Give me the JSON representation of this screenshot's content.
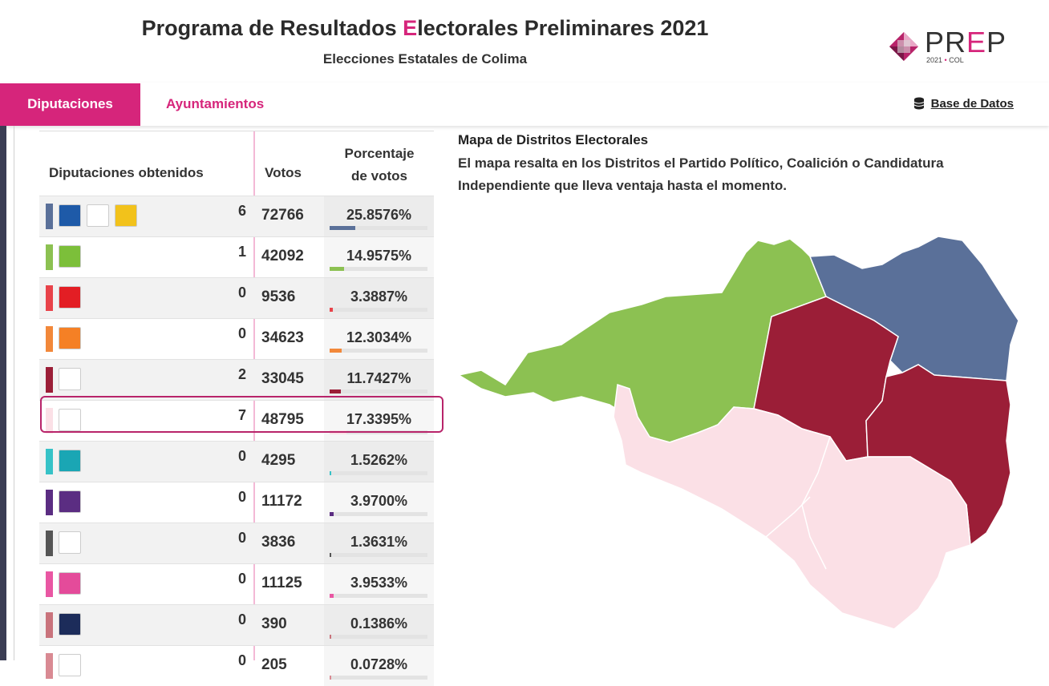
{
  "header": {
    "title_pre": "Programa de Resultados ",
    "title_e": "E",
    "title_post": "lectorales Preliminares 2021",
    "subtitle": "Elecciones Estatales de Colima",
    "logo": {
      "pr": "PR",
      "e": "E",
      "p": "P",
      "year": "2021",
      "dot": "•",
      "state": "COL"
    }
  },
  "nav": {
    "tabs": [
      {
        "label": "Diputaciones",
        "active": true
      },
      {
        "label": "Ayuntamientos",
        "active": false
      }
    ],
    "db_link": "Base de Datos"
  },
  "table": {
    "headers": {
      "party": "Diputaciones obtenidos",
      "votes": "Votos",
      "pct_line1": "Porcentaje",
      "pct_line2": "de votos"
    },
    "rows": [
      {
        "logos": [
          "PAN",
          "PRI",
          "PRD"
        ],
        "won": "6",
        "votes": "72766",
        "pct": "25.8576%",
        "pct_value": 25.8576,
        "color": "#5a7099",
        "logo_colors": [
          "#1e5aa8",
          "#ffffff",
          "#f2c21b"
        ]
      },
      {
        "logos": [
          "VERDE"
        ],
        "won": "1",
        "votes": "42092",
        "pct": "14.9575%",
        "pct_value": 14.9575,
        "color": "#8cc152",
        "logo_colors": [
          "#7cbf3a"
        ]
      },
      {
        "logos": [
          "PT"
        ],
        "won": "0",
        "votes": "9536",
        "pct": "3.3887%",
        "pct_value": 3.3887,
        "color": "#e8434a",
        "logo_colors": [
          "#e31e24"
        ]
      },
      {
        "logos": [
          "MC"
        ],
        "won": "0",
        "votes": "34623",
        "pct": "12.3034%",
        "pct_value": 12.3034,
        "color": "#f2883a",
        "logo_colors": [
          "#f58025"
        ]
      },
      {
        "logos": [
          "morena NAC"
        ],
        "won": "2",
        "votes": "33045",
        "pct": "11.7427%",
        "pct_value": 11.7427,
        "color": "#9b1e37",
        "logo_colors": [
          "#ffffff"
        ]
      },
      {
        "logos": [
          "morena"
        ],
        "won": "7",
        "votes": "48795",
        "pct": "17.3395%",
        "pct_value": 17.3395,
        "color": "#fbe0e6",
        "logo_colors": [
          "#ffffff"
        ]
      },
      {
        "logos": [
          "NA"
        ],
        "won": "0",
        "votes": "4295",
        "pct": "1.5262%",
        "pct_value": 1.5262,
        "color": "#36c2c7",
        "logo_colors": [
          "#1aa6b4"
        ]
      },
      {
        "logos": [
          "PES"
        ],
        "won": "0",
        "votes": "11172",
        "pct": "3.9700%",
        "pct_value": 3.97,
        "color": "#5b2d82",
        "logo_colors": [
          "#5b2d82"
        ]
      },
      {
        "logos": [
          "RSP"
        ],
        "won": "0",
        "votes": "3836",
        "pct": "1.3631%",
        "pct_value": 1.3631,
        "color": "#555555",
        "logo_colors": [
          "#ffffff"
        ]
      },
      {
        "logos": [
          "FXM"
        ],
        "won": "0",
        "votes": "11125",
        "pct": "3.9533%",
        "pct_value": 3.9533,
        "color": "#e957a3",
        "logo_colors": [
          "#e44b9a"
        ]
      },
      {
        "logos": [
          "IND"
        ],
        "won": "0",
        "votes": "390",
        "pct": "0.1386%",
        "pct_value": 0.1386,
        "color": "#c9737c",
        "logo_colors": [
          "#1c2c5a"
        ]
      },
      {
        "logos": [
          "IND2"
        ],
        "won": "0",
        "votes": "205",
        "pct": "0.0728%",
        "pct_value": 0.0728,
        "color": "#d98a93",
        "logo_colors": [
          "#ffffff"
        ]
      }
    ],
    "bar_max_pct": 100
  },
  "map": {
    "title": "Mapa de Distritos Electorales",
    "description": "El mapa resalta en los Distritos el Partido Político, Coalición o Candidatura Independiente que lleva ventaja hasta el momento.",
    "colors": {
      "green": "#8cc152",
      "blue": "#5a7099",
      "maroon": "#9b1e37",
      "pink": "#fbe0e6"
    }
  }
}
